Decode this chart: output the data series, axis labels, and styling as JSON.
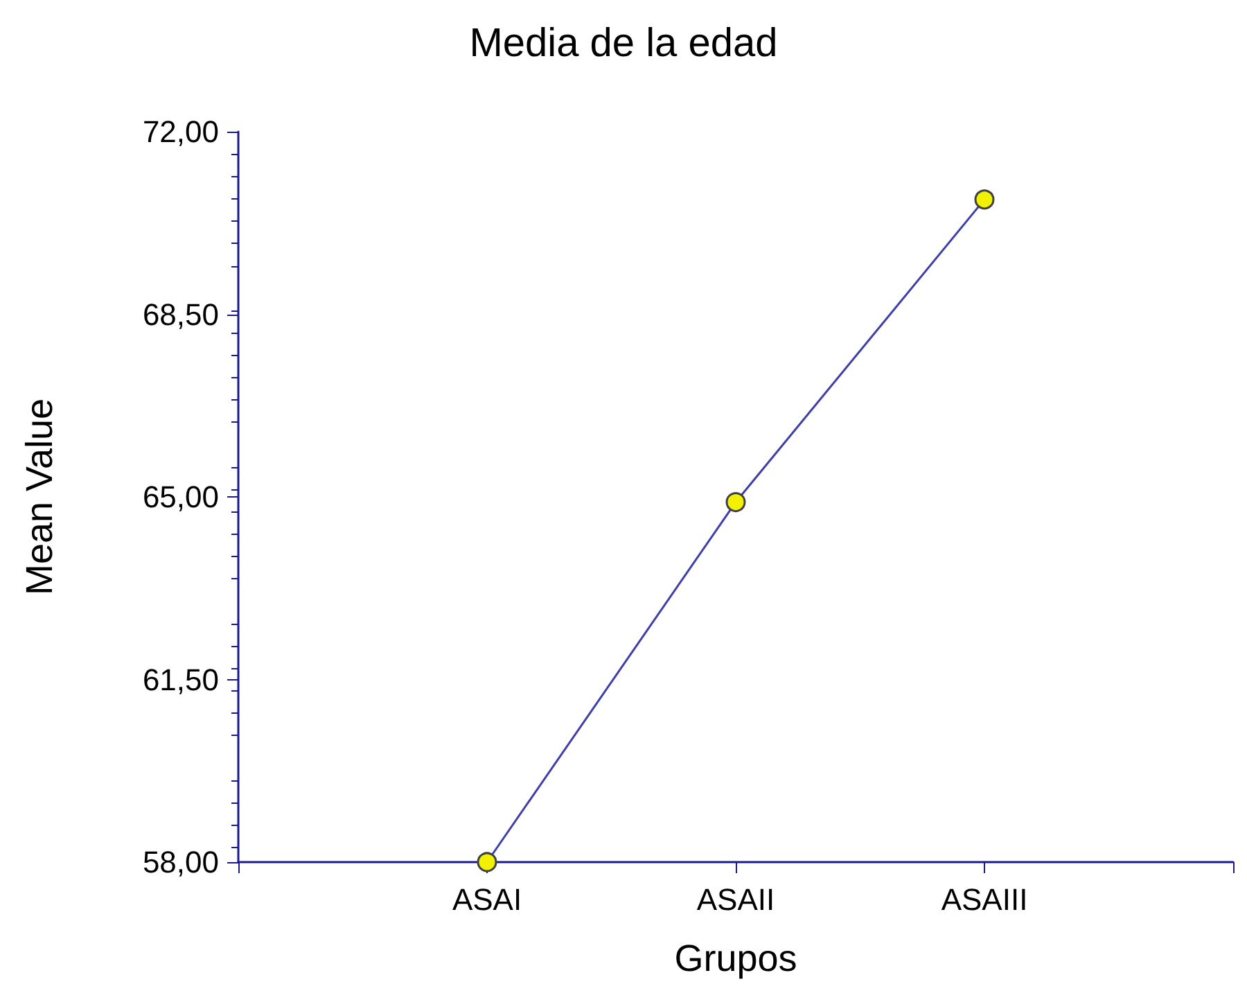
{
  "chart_data": {
    "type": "line",
    "title": "Media de la edad",
    "xlabel": "Grupos",
    "ylabel": "Mean Value",
    "categories": [
      null,
      "ASAI",
      "ASAII",
      "ASAIII",
      null
    ],
    "series": [
      {
        "color": "#3f3fa8",
        "values": [
          null,
          58.0,
          64.9,
          70.7,
          null
        ]
      }
    ],
    "ylim": [
      58,
      72
    ],
    "yticks": [
      {
        "value": 58,
        "label": "58,00"
      },
      {
        "value": 61.5,
        "label": "61,50"
      },
      {
        "value": 65,
        "label": "65,00"
      },
      {
        "value": 68.5,
        "label": "68,50"
      },
      {
        "value": 72,
        "label": "72,00"
      }
    ],
    "grid": false,
    "marker": "circle",
    "line_style": "solid"
  }
}
